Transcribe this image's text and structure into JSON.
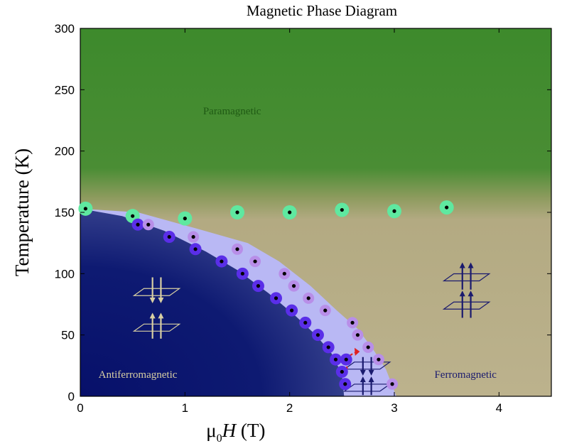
{
  "chart_data": {
    "type": "scatter",
    "title": "Magnetic Phase Diagram",
    "xlabel": {
      "prefix": "μ",
      "sub": "0",
      "italic": "H",
      "suffix": " (T)"
    },
    "ylabel": "Temperature (K)",
    "xlim": [
      0,
      4.5
    ],
    "ylim": [
      0,
      300
    ],
    "x_ticks": [
      0,
      1,
      2,
      3,
      4
    ],
    "y_ticks": [
      0,
      50,
      100,
      150,
      200,
      250,
      300
    ],
    "grid": false,
    "region_labels": {
      "paramagnetic": "Paramagnetic",
      "antiferromagnetic": "Antiferromagnetic",
      "ferromagnetic": "Ferromagnetic"
    },
    "colors": {
      "paramagnetic": "#3f8a2e",
      "transition": "#b3aa82",
      "ferromagnetic": "#bcb28d",
      "antiferromagnetic": "#0b1668",
      "afm_edge": "#5a64b0",
      "mixed": "#b9b8f4",
      "curie_point": "#5fe8a0",
      "afm_boundary_point": "#5a2ee8",
      "mixed_boundary_point": "#b88ee8",
      "afm_arrow": "#d8cfa3",
      "fm_arrow": "#1a1a6e",
      "red_arrow": "#e02020"
    },
    "series": [
      {
        "role": "curie",
        "x": [
          0.05,
          0.5,
          1.0,
          1.5,
          2.0,
          2.5,
          3.0,
          3.5
        ],
        "y": [
          153,
          147,
          145,
          150,
          150,
          152,
          151,
          154
        ]
      },
      {
        "role": "afm_boundary",
        "x": [
          0.55,
          0.85,
          1.1,
          1.35,
          1.55,
          1.7,
          1.87,
          2.02,
          2.15,
          2.27,
          2.37,
          2.44,
          2.5,
          2.53,
          2.54
        ],
        "y": [
          140,
          130,
          120,
          110,
          100,
          90,
          80,
          70,
          60,
          50,
          40,
          30,
          20,
          10,
          30
        ]
      },
      {
        "role": "mixed_boundary",
        "x": [
          0.65,
          1.08,
          1.5,
          1.67,
          1.95,
          2.04,
          2.18,
          2.34,
          2.6,
          2.65,
          2.75,
          2.85,
          2.98
        ],
        "y": [
          140,
          130,
          120,
          110,
          100,
          90,
          80,
          70,
          60,
          50,
          40,
          30,
          10
        ]
      }
    ]
  }
}
